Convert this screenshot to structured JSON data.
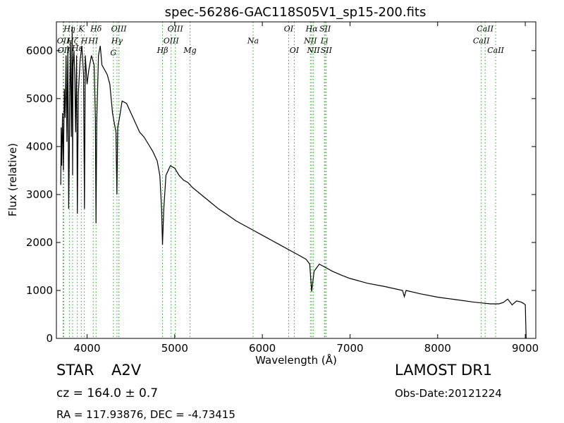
{
  "chart_data": {
    "type": "line",
    "title": "spec-56286-GAC118S05V1_sp15-200.fits",
    "xlabel": "Wavelength (Å)",
    "ylabel": "Flux (relative)",
    "xlim": [
      3650,
      9120
    ],
    "ylim": [
      0,
      6600
    ],
    "xticks": [
      4000,
      5000,
      6000,
      7000,
      8000,
      9000
    ],
    "yticks": [
      0,
      1000,
      2000,
      3000,
      4000,
      5000,
      6000
    ],
    "grid": false,
    "line_color": "#000000",
    "marker_color": "#2ca02c",
    "series": [
      {
        "x": [
          3700,
          3705,
          3710,
          3720,
          3730,
          3740,
          3750,
          3760,
          3770,
          3780,
          3790,
          3797,
          3800,
          3810,
          3820,
          3830,
          3835,
          3840,
          3850,
          3860,
          3870,
          3880,
          3889,
          3900,
          3920,
          3940,
          3960,
          3970,
          3980,
          4000,
          4020,
          4050,
          4080,
          4095,
          4102,
          4110,
          4130,
          4150,
          4170,
          4200,
          4230,
          4260,
          4290,
          4310,
          4330,
          4340,
          4350,
          4370,
          4400,
          4450,
          4500,
          4550,
          4600,
          4650,
          4700,
          4750,
          4800,
          4830,
          4850,
          4861,
          4875,
          4900,
          4950,
          5000,
          5050,
          5100,
          5150,
          5200,
          5300,
          5400,
          5500,
          5600,
          5700,
          5800,
          5900,
          6000,
          6100,
          6200,
          6300,
          6400,
          6500,
          6540,
          6563,
          6590,
          6650,
          6700,
          6800,
          6900,
          7000,
          7200,
          7400,
          7600,
          7620,
          7640,
          7800,
          8000,
          8200,
          8400,
          8500,
          8600,
          8700,
          8750,
          8800,
          8850,
          8900,
          8950,
          8980,
          9000,
          9010
        ],
        "y": [
          3200,
          4400,
          3600,
          4700,
          3500,
          5200,
          4600,
          5900,
          4100,
          6100,
          2700,
          3900,
          4800,
          6200,
          4200,
          6500,
          3400,
          5700,
          6000,
          5400,
          4300,
          5900,
          2600,
          5100,
          5800,
          6100,
          5500,
          2700,
          5900,
          5300,
          5600,
          5900,
          5700,
          4600,
          2400,
          4500,
          5900,
          6100,
          5700,
          5600,
          5500,
          5300,
          4700,
          4500,
          4300,
          3000,
          4400,
          4600,
          4950,
          4900,
          4700,
          4500,
          4300,
          4200,
          4050,
          3900,
          3700,
          3400,
          2700,
          1950,
          2700,
          3400,
          3600,
          3550,
          3400,
          3300,
          3250,
          3150,
          3000,
          2850,
          2700,
          2580,
          2450,
          2350,
          2250,
          2150,
          2050,
          1950,
          1850,
          1750,
          1650,
          1550,
          980,
          1400,
          1550,
          1500,
          1400,
          1320,
          1250,
          1150,
          1080,
          1000,
          870,
          1000,
          930,
          860,
          810,
          760,
          740,
          720,
          720,
          750,
          820,
          700,
          780,
          760,
          730,
          700,
          0
        ]
      }
    ],
    "line_markers": [
      {
        "wl": 3727,
        "label": "OII",
        "label_y": 6150
      },
      {
        "wl": 3734,
        "label": "OII",
        "label_y": 5950
      },
      {
        "wl": 3798,
        "label": "Hη",
        "label_y": 6400
      },
      {
        "wl": 3835,
        "label": "Hζ",
        "label_y": 6150
      },
      {
        "wl": 3889,
        "label": "Hε",
        "label_y": 6000
      },
      {
        "wl": 3934,
        "label": "K",
        "label_y": 6400
      },
      {
        "wl": 3969,
        "label": "H",
        "label_y": 6150
      },
      {
        "wl": 4102,
        "label": "Hδ",
        "label_y": 6400
      },
      {
        "wl": 4070,
        "label": "HI",
        "label_y": 6150
      },
      {
        "wl": 4300,
        "label": "G",
        "label_y": 5900
      },
      {
        "wl": 4341,
        "label": "Hγ",
        "label_y": 6150
      },
      {
        "wl": 4363,
        "label": "OIII",
        "label_y": 6400
      },
      {
        "wl": 4861,
        "label": "Hβ",
        "label_y": 5950
      },
      {
        "wl": 4959,
        "label": "OIII",
        "label_y": 6150
      },
      {
        "wl": 5007,
        "label": "OIII",
        "label_y": 6400
      },
      {
        "wl": 5175,
        "label": "Mg",
        "label_y": 5950
      },
      {
        "wl": 5894,
        "label": "Na",
        "label_y": 6150
      },
      {
        "wl": 6300,
        "label": "OI",
        "label_y": 6400
      },
      {
        "wl": 6364,
        "label": "OI",
        "label_y": 5950
      },
      {
        "wl": 6548,
        "label": "NII",
        "label_y": 6150
      },
      {
        "wl": 6563,
        "label": "Hα",
        "label_y": 6400
      },
      {
        "wl": 6583,
        "label": "NII",
        "label_y": 5950
      },
      {
        "wl": 6708,
        "label": "Li",
        "label_y": 6150
      },
      {
        "wl": 6716,
        "label": "SII",
        "label_y": 6400
      },
      {
        "wl": 6730,
        "label": "SII",
        "label_y": 5950
      },
      {
        "wl": 8498,
        "label": "CaII",
        "label_y": 6150
      },
      {
        "wl": 8542,
        "label": "CaII",
        "label_y": 6400
      },
      {
        "wl": 8662,
        "label": "CaII",
        "label_y": 5950
      }
    ]
  },
  "info": {
    "object_class": "STAR",
    "subclass": "A2V",
    "survey": "LAMOST DR1",
    "redshift": "cz = 164.0 ± 0.7",
    "obs_date": "Obs-Date:20121224",
    "coords": "RA = 117.93876, DEC = -4.73415"
  }
}
